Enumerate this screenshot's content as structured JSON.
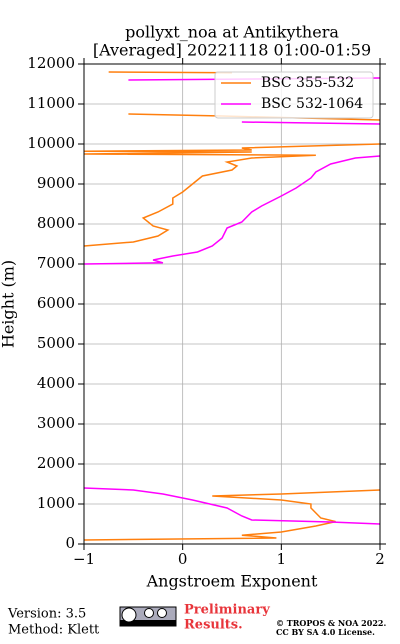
{
  "chart_data": {
    "type": "line",
    "title": [
      "pollyxt_noa at Antikythera",
      "[Averaged] 20221118 01:00-01:59"
    ],
    "x_label": "Angstroem Exponent",
    "y_label": "Height (m)",
    "xlim": [
      -1,
      2
    ],
    "ylim": [
      0,
      12000
    ],
    "xticks": [
      {
        "value": -1,
        "label": "−1"
      },
      0,
      1,
      2
    ],
    "yticks": [
      0,
      1000,
      2000,
      3000,
      4000,
      5000,
      6000,
      7000,
      8000,
      9000,
      10000,
      11000,
      12000
    ],
    "grid": true,
    "legend": "upper right",
    "series": [
      {
        "name": "BSC 355-532",
        "color": "#ff7f0e",
        "x": [
          -1,
          0.95,
          0.6,
          1.0,
          1.35,
          1.55,
          1.4,
          1.3,
          1.3,
          1.0,
          0.3,
          1.0,
          2,
          null,
          -1,
          -0.5,
          -0.25,
          -0.15,
          -0.3,
          -0.4,
          -0.25,
          -0.1,
          -0.1,
          0,
          0.1,
          0.2,
          0.5,
          0.55,
          0.45,
          0.7,
          1.35,
          -1,
          0.7,
          -1,
          0.7,
          0.6,
          2,
          null,
          -0.55,
          0.4,
          2,
          null,
          -0.75,
          0.5
        ],
        "values": [
          100,
          150,
          220,
          300,
          450,
          560,
          650,
          900,
          1000,
          1100,
          1200,
          1250,
          1350,
          null,
          7450,
          7550,
          7700,
          7850,
          7950,
          8150,
          8300,
          8500,
          8650,
          8800,
          9000,
          9200,
          9350,
          9450,
          9550,
          9650,
          9720,
          9750,
          9800,
          9820,
          9850,
          9900,
          10000,
          null,
          10750,
          10700,
          10600,
          null,
          11800,
          11780
        ]
      },
      {
        "name": "BSC 532-1064",
        "color": "#ff00ff",
        "x": [
          2,
          1.5,
          0.7,
          0.6,
          0.45,
          0.1,
          -0.2,
          -0.5,
          -1,
          null,
          -1,
          -0.2,
          -0.3,
          -0.1,
          0.15,
          0.3,
          0.4,
          0.45,
          0.6,
          0.7,
          0.8,
          1.0,
          1.15,
          1.3,
          1.35,
          1.5,
          1.75,
          2,
          null,
          0.6,
          2,
          null,
          -0.55,
          2
        ],
        "values": [
          500,
          550,
          600,
          700,
          900,
          1100,
          1250,
          1350,
          1400,
          null,
          7000,
          7030,
          7100,
          7200,
          7300,
          7450,
          7650,
          7900,
          8050,
          8300,
          8450,
          8700,
          8900,
          9150,
          9300,
          9500,
          9650,
          9700,
          null,
          10550,
          10500,
          null,
          11600,
          11650
        ]
      }
    ]
  },
  "footer": {
    "version": "Version: 3.5",
    "method": "Method: Klett",
    "preliminary": [
      "Preliminary",
      "Results."
    ],
    "copyright": [
      "© TROPOS & NOA 2022.",
      "CC BY SA 4.0 License."
    ]
  }
}
